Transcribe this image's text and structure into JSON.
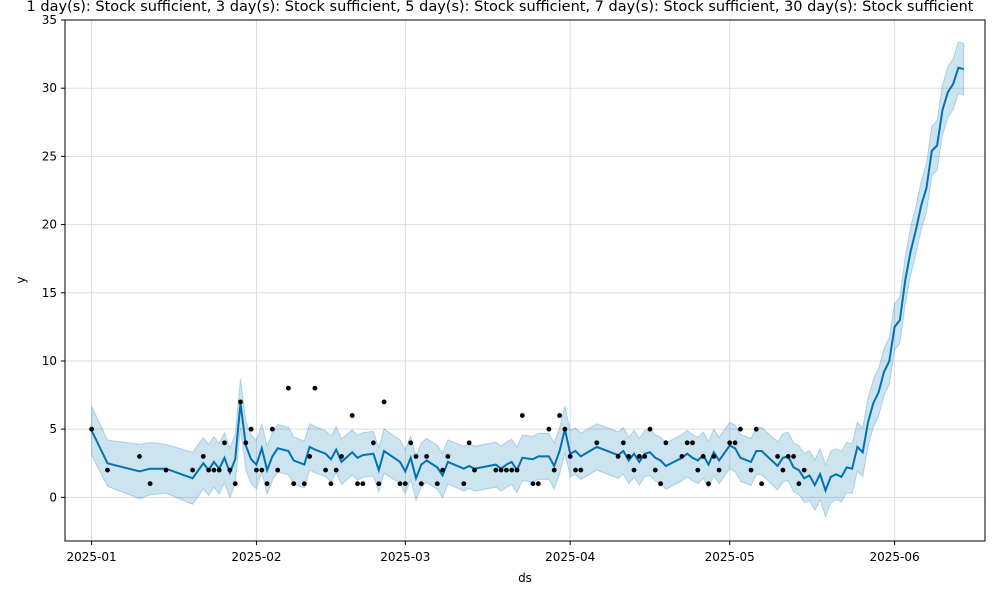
{
  "chart_data": {
    "type": "line",
    "title": "1 day(s): Stock sufficient, 3 day(s): Stock sufficient, 5 day(s): Stock sufficient, 7 day(s): Stock sufficient, 30 day(s): Stock sufficient",
    "xlabel": "ds",
    "ylabel": "y",
    "xlim": [
      "2024-12-27",
      "2025-06-18"
    ],
    "ylim": [
      -3.2,
      35
    ],
    "x_ticks": [
      {
        "date": "2025-01-01",
        "label": "2025-01"
      },
      {
        "date": "2025-02-01",
        "label": "2025-02"
      },
      {
        "date": "2025-03-01",
        "label": "2025-03"
      },
      {
        "date": "2025-04-01",
        "label": "2025-04"
      },
      {
        "date": "2025-05-01",
        "label": "2025-05"
      },
      {
        "date": "2025-06-01",
        "label": "2025-06"
      }
    ],
    "y_ticks": [
      0,
      5,
      10,
      15,
      20,
      25,
      30,
      35
    ],
    "grid": true,
    "colors": {
      "forecast": "#0072B2",
      "band": "#0072B2",
      "observed": "#000000",
      "grid": "#dddddd"
    },
    "observed": [
      [
        "2025-01-01",
        5
      ],
      [
        "2025-01-04",
        2
      ],
      [
        "2025-01-10",
        3
      ],
      [
        "2025-01-12",
        1
      ],
      [
        "2025-01-15",
        2
      ],
      [
        "2025-01-20",
        2
      ],
      [
        "2025-01-22",
        3
      ],
      [
        "2025-01-23",
        2
      ],
      [
        "2025-01-24",
        2
      ],
      [
        "2025-01-25",
        2
      ],
      [
        "2025-01-26",
        4
      ],
      [
        "2025-01-27",
        2
      ],
      [
        "2025-01-28",
        1
      ],
      [
        "2025-01-29",
        7
      ],
      [
        "2025-01-30",
        4
      ],
      [
        "2025-01-31",
        5
      ],
      [
        "2025-02-01",
        2
      ],
      [
        "2025-02-02",
        2
      ],
      [
        "2025-02-03",
        1
      ],
      [
        "2025-02-04",
        5
      ],
      [
        "2025-02-05",
        2
      ],
      [
        "2025-02-07",
        8
      ],
      [
        "2025-02-08",
        1
      ],
      [
        "2025-02-10",
        1
      ],
      [
        "2025-02-11",
        3
      ],
      [
        "2025-02-12",
        8
      ],
      [
        "2025-02-14",
        2
      ],
      [
        "2025-02-15",
        1
      ],
      [
        "2025-02-16",
        2
      ],
      [
        "2025-02-17",
        3
      ],
      [
        "2025-02-19",
        6
      ],
      [
        "2025-02-20",
        1
      ],
      [
        "2025-02-21",
        1
      ],
      [
        "2025-02-23",
        4
      ],
      [
        "2025-02-24",
        1
      ],
      [
        "2025-02-25",
        7
      ],
      [
        "2025-02-28",
        1
      ],
      [
        "2025-03-01",
        1
      ],
      [
        "2025-03-02",
        4
      ],
      [
        "2025-03-03",
        3
      ],
      [
        "2025-03-04",
        1
      ],
      [
        "2025-03-05",
        3
      ],
      [
        "2025-03-07",
        1
      ],
      [
        "2025-03-08",
        2
      ],
      [
        "2025-03-09",
        3
      ],
      [
        "2025-03-12",
        1
      ],
      [
        "2025-03-13",
        4
      ],
      [
        "2025-03-14",
        2
      ],
      [
        "2025-03-18",
        2
      ],
      [
        "2025-03-19",
        2
      ],
      [
        "2025-03-20",
        2
      ],
      [
        "2025-03-21",
        2
      ],
      [
        "2025-03-22",
        2
      ],
      [
        "2025-03-23",
        6
      ],
      [
        "2025-03-25",
        1
      ],
      [
        "2025-03-26",
        1
      ],
      [
        "2025-03-28",
        5
      ],
      [
        "2025-03-29",
        2
      ],
      [
        "2025-03-30",
        6
      ],
      [
        "2025-03-31",
        5
      ],
      [
        "2025-04-01",
        3
      ],
      [
        "2025-04-02",
        2
      ],
      [
        "2025-04-03",
        2
      ],
      [
        "2025-04-06",
        4
      ],
      [
        "2025-04-10",
        3
      ],
      [
        "2025-04-11",
        4
      ],
      [
        "2025-04-12",
        3
      ],
      [
        "2025-04-13",
        2
      ],
      [
        "2025-04-14",
        3
      ],
      [
        "2025-04-15",
        3
      ],
      [
        "2025-04-16",
        5
      ],
      [
        "2025-04-17",
        2
      ],
      [
        "2025-04-18",
        1
      ],
      [
        "2025-04-19",
        4
      ],
      [
        "2025-04-22",
        3
      ],
      [
        "2025-04-23",
        4
      ],
      [
        "2025-04-24",
        4
      ],
      [
        "2025-04-25",
        2
      ],
      [
        "2025-04-26",
        3
      ],
      [
        "2025-04-27",
        1
      ],
      [
        "2025-04-28",
        3
      ],
      [
        "2025-04-29",
        2
      ],
      [
        "2025-05-01",
        4
      ],
      [
        "2025-05-02",
        4
      ],
      [
        "2025-05-03",
        5
      ],
      [
        "2025-05-05",
        2
      ],
      [
        "2025-05-06",
        5
      ],
      [
        "2025-05-07",
        1
      ],
      [
        "2025-05-10",
        3
      ],
      [
        "2025-05-11",
        2
      ],
      [
        "2025-05-12",
        3
      ],
      [
        "2025-05-13",
        3
      ],
      [
        "2025-05-14",
        1
      ],
      [
        "2025-05-15",
        2
      ]
    ],
    "forecast": [
      [
        "2025-01-01",
        4.9
      ],
      [
        "2025-01-04",
        2.5
      ],
      [
        "2025-01-10",
        1.9
      ],
      [
        "2025-01-12",
        2.1
      ],
      [
        "2025-01-15",
        2.1
      ],
      [
        "2025-01-20",
        1.4
      ],
      [
        "2025-01-22",
        2.5
      ],
      [
        "2025-01-23",
        2.0
      ],
      [
        "2025-01-24",
        2.6
      ],
      [
        "2025-01-25",
        2.1
      ],
      [
        "2025-01-26",
        2.9
      ],
      [
        "2025-01-27",
        1.8
      ],
      [
        "2025-01-28",
        2.8
      ],
      [
        "2025-01-29",
        6.9
      ],
      [
        "2025-01-30",
        3.8
      ],
      [
        "2025-01-31",
        2.8
      ],
      [
        "2025-02-01",
        2.4
      ],
      [
        "2025-02-02",
        3.6
      ],
      [
        "2025-02-03",
        2.0
      ],
      [
        "2025-02-04",
        3.0
      ],
      [
        "2025-02-05",
        3.6
      ],
      [
        "2025-02-07",
        3.4
      ],
      [
        "2025-02-08",
        2.7
      ],
      [
        "2025-02-10",
        2.4
      ],
      [
        "2025-02-11",
        3.7
      ],
      [
        "2025-02-12",
        3.5
      ],
      [
        "2025-02-14",
        3.2
      ],
      [
        "2025-02-15",
        2.8
      ],
      [
        "2025-02-16",
        3.5
      ],
      [
        "2025-02-17",
        2.6
      ],
      [
        "2025-02-19",
        3.3
      ],
      [
        "2025-02-20",
        2.9
      ],
      [
        "2025-02-21",
        3.1
      ],
      [
        "2025-02-23",
        3.2
      ],
      [
        "2025-02-24",
        2.0
      ],
      [
        "2025-02-25",
        3.4
      ],
      [
        "2025-02-28",
        2.6
      ],
      [
        "2025-03-01",
        1.9
      ],
      [
        "2025-03-02",
        2.9
      ],
      [
        "2025-03-03",
        1.4
      ],
      [
        "2025-03-04",
        2.4
      ],
      [
        "2025-03-05",
        2.7
      ],
      [
        "2025-03-07",
        2.2
      ],
      [
        "2025-03-08",
        1.6
      ],
      [
        "2025-03-09",
        2.6
      ],
      [
        "2025-03-12",
        2.1
      ],
      [
        "2025-03-13",
        2.3
      ],
      [
        "2025-03-14",
        2.1
      ],
      [
        "2025-03-18",
        2.4
      ],
      [
        "2025-03-19",
        2.1
      ],
      [
        "2025-03-20",
        2.4
      ],
      [
        "2025-03-21",
        2.6
      ],
      [
        "2025-03-22",
        2.0
      ],
      [
        "2025-03-23",
        2.9
      ],
      [
        "2025-03-25",
        2.8
      ],
      [
        "2025-03-26",
        3.0
      ],
      [
        "2025-03-28",
        3.0
      ],
      [
        "2025-03-29",
        2.3
      ],
      [
        "2025-03-30",
        3.4
      ],
      [
        "2025-03-31",
        5.0
      ],
      [
        "2025-04-01",
        3.2
      ],
      [
        "2025-04-02",
        3.4
      ],
      [
        "2025-04-03",
        3.0
      ],
      [
        "2025-04-06",
        3.7
      ],
      [
        "2025-04-10",
        3.1
      ],
      [
        "2025-04-11",
        3.4
      ],
      [
        "2025-04-12",
        2.7
      ],
      [
        "2025-04-13",
        3.2
      ],
      [
        "2025-04-14",
        2.6
      ],
      [
        "2025-04-15",
        3.2
      ],
      [
        "2025-04-16",
        3.3
      ],
      [
        "2025-04-17",
        2.9
      ],
      [
        "2025-04-18",
        2.7
      ],
      [
        "2025-04-19",
        2.3
      ],
      [
        "2025-04-22",
        2.9
      ],
      [
        "2025-04-23",
        3.2
      ],
      [
        "2025-04-24",
        2.9
      ],
      [
        "2025-04-25",
        2.7
      ],
      [
        "2025-04-26",
        3.1
      ],
      [
        "2025-04-27",
        2.4
      ],
      [
        "2025-04-28",
        3.3
      ],
      [
        "2025-04-29",
        2.7
      ],
      [
        "2025-05-01",
        3.8
      ],
      [
        "2025-05-02",
        3.6
      ],
      [
        "2025-05-03",
        2.9
      ],
      [
        "2025-05-05",
        2.6
      ],
      [
        "2025-05-06",
        3.4
      ],
      [
        "2025-05-07",
        3.4
      ],
      [
        "2025-05-10",
        2.3
      ],
      [
        "2025-05-11",
        2.9
      ],
      [
        "2025-05-12",
        3.0
      ],
      [
        "2025-05-13",
        2.2
      ],
      [
        "2025-05-14",
        2.0
      ],
      [
        "2025-05-15",
        1.4
      ],
      [
        "2025-05-16",
        1.6
      ],
      [
        "2025-05-17",
        0.9
      ],
      [
        "2025-05-18",
        1.7
      ],
      [
        "2025-05-19",
        0.5
      ],
      [
        "2025-05-20",
        1.5
      ],
      [
        "2025-05-21",
        1.7
      ],
      [
        "2025-05-22",
        1.5
      ],
      [
        "2025-05-23",
        2.2
      ],
      [
        "2025-05-24",
        2.1
      ],
      [
        "2025-05-25",
        3.7
      ],
      [
        "2025-05-26",
        3.3
      ],
      [
        "2025-05-27",
        5.5
      ],
      [
        "2025-05-28",
        6.9
      ],
      [
        "2025-05-29",
        7.7
      ],
      [
        "2025-05-30",
        9.2
      ],
      [
        "2025-05-31",
        10.0
      ],
      [
        "2025-06-01",
        12.5
      ],
      [
        "2025-06-02",
        13.0
      ],
      [
        "2025-06-03",
        15.9
      ],
      [
        "2025-06-04",
        18.0
      ],
      [
        "2025-06-05",
        19.6
      ],
      [
        "2025-06-06",
        21.4
      ],
      [
        "2025-06-07",
        22.7
      ],
      [
        "2025-06-08",
        25.4
      ],
      [
        "2025-06-09",
        25.8
      ],
      [
        "2025-06-10",
        28.4
      ],
      [
        "2025-06-11",
        29.7
      ],
      [
        "2025-06-12",
        30.3
      ],
      [
        "2025-06-13",
        31.5
      ],
      [
        "2025-06-14",
        31.4
      ]
    ],
    "band_width": [
      [
        "2025-01-01",
        1.8
      ],
      [
        "2025-01-04",
        1.7
      ],
      [
        "2025-01-10",
        2.0
      ],
      [
        "2025-01-15",
        1.8
      ],
      [
        "2025-01-20",
        1.9
      ],
      [
        "2025-01-29",
        1.8
      ],
      [
        "2025-02-12",
        1.7
      ],
      [
        "2025-03-01",
        1.6
      ],
      [
        "2025-04-01",
        1.7
      ],
      [
        "2025-05-01",
        1.7
      ],
      [
        "2025-05-15",
        1.8
      ],
      [
        "2025-05-19",
        1.9
      ],
      [
        "2025-05-25",
        1.8
      ],
      [
        "2025-06-01",
        1.7
      ],
      [
        "2025-06-14",
        1.9
      ]
    ]
  }
}
